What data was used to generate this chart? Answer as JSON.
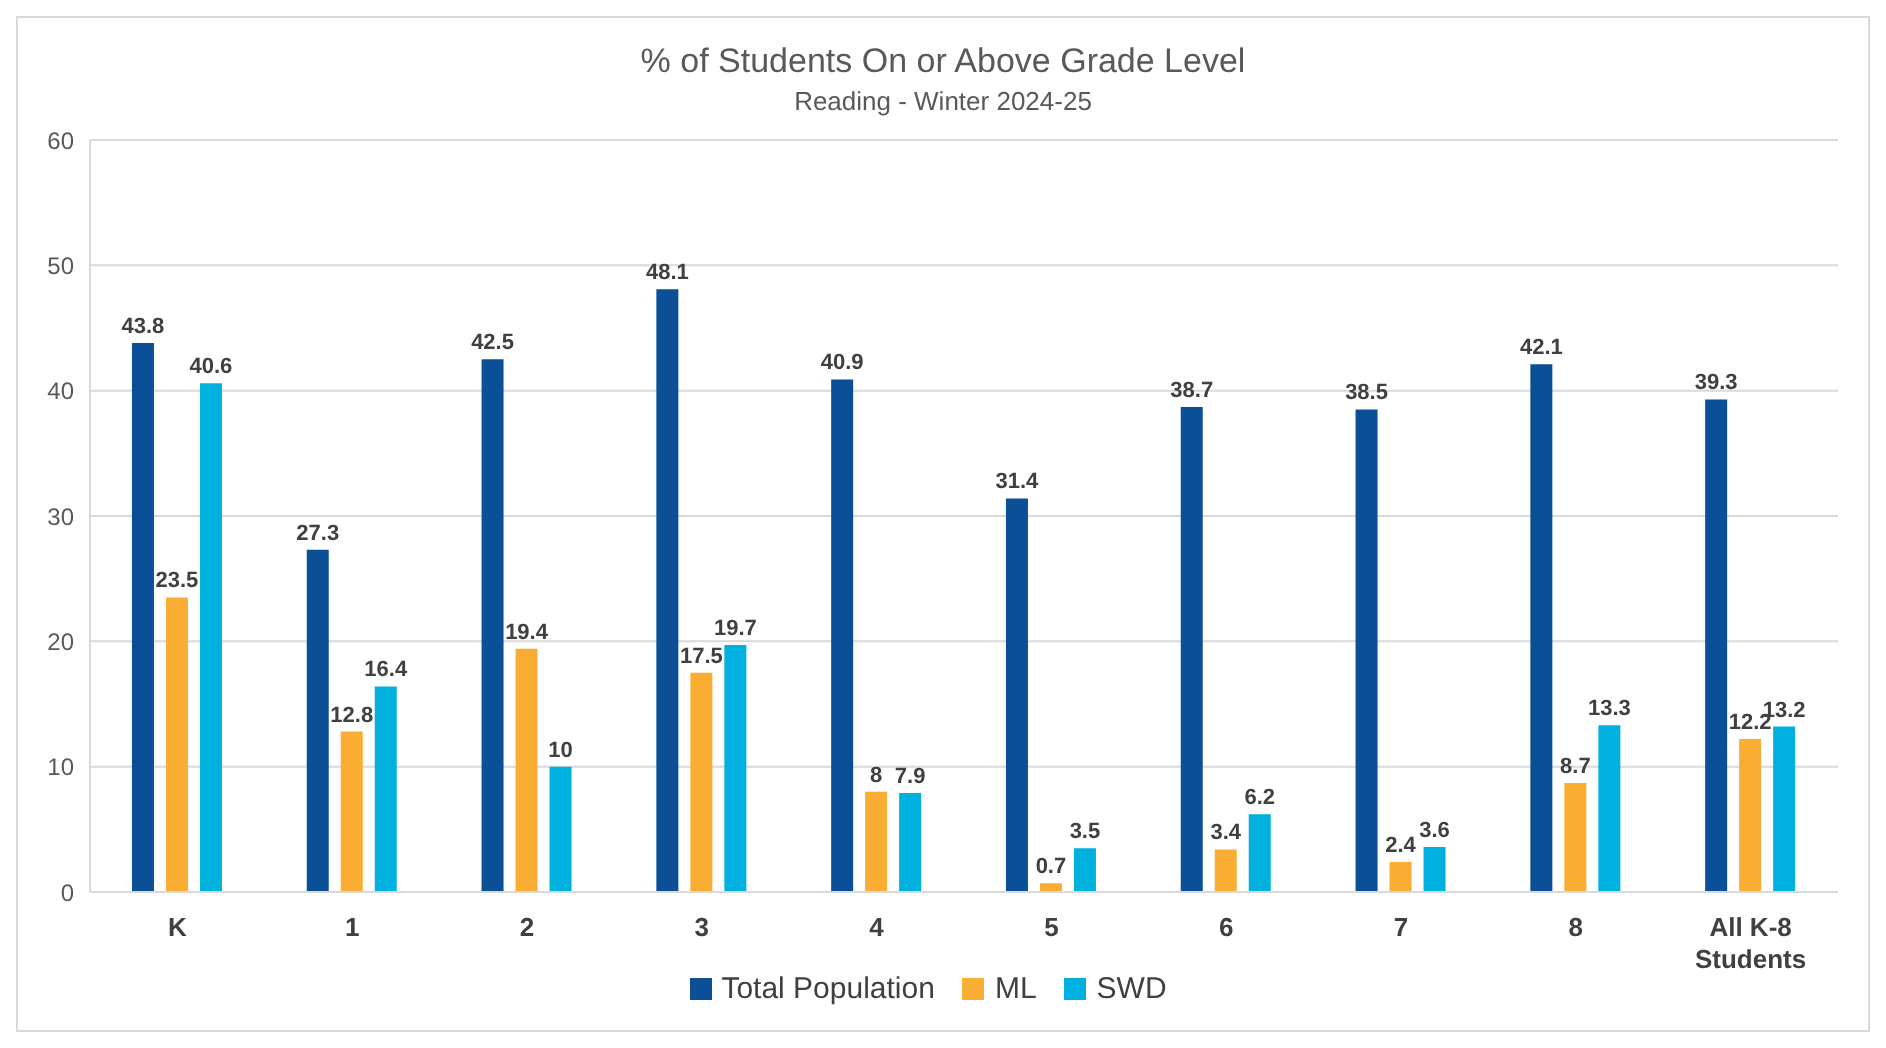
{
  "chart_data": {
    "type": "bar",
    "title": "% of Students On or Above Grade Level",
    "subtitle": "Reading - Winter 2024-25",
    "categories": [
      "K",
      "1",
      "2",
      "3",
      "4",
      "5",
      "6",
      "7",
      "8",
      "All K-8 Students"
    ],
    "series": [
      {
        "name": "Total Population",
        "color": "#0b4f96",
        "values": [
          43.8,
          27.3,
          42.5,
          48.1,
          40.9,
          31.4,
          38.7,
          38.5,
          42.1,
          39.3
        ]
      },
      {
        "name": "ML",
        "color": "#f9ad33",
        "values": [
          23.5,
          12.8,
          19.4,
          17.5,
          8,
          0.7,
          3.4,
          2.4,
          8.7,
          12.2
        ]
      },
      {
        "name": "SWD",
        "color": "#00b0df",
        "values": [
          40.6,
          16.4,
          10,
          19.7,
          7.9,
          3.5,
          6.2,
          3.6,
          13.3,
          13.2
        ]
      }
    ],
    "ylim": [
      0,
      60
    ],
    "yticks": [
      0,
      10,
      20,
      30,
      40,
      50,
      60
    ],
    "grid": "y",
    "legend": "bottom",
    "data_labels": true
  }
}
